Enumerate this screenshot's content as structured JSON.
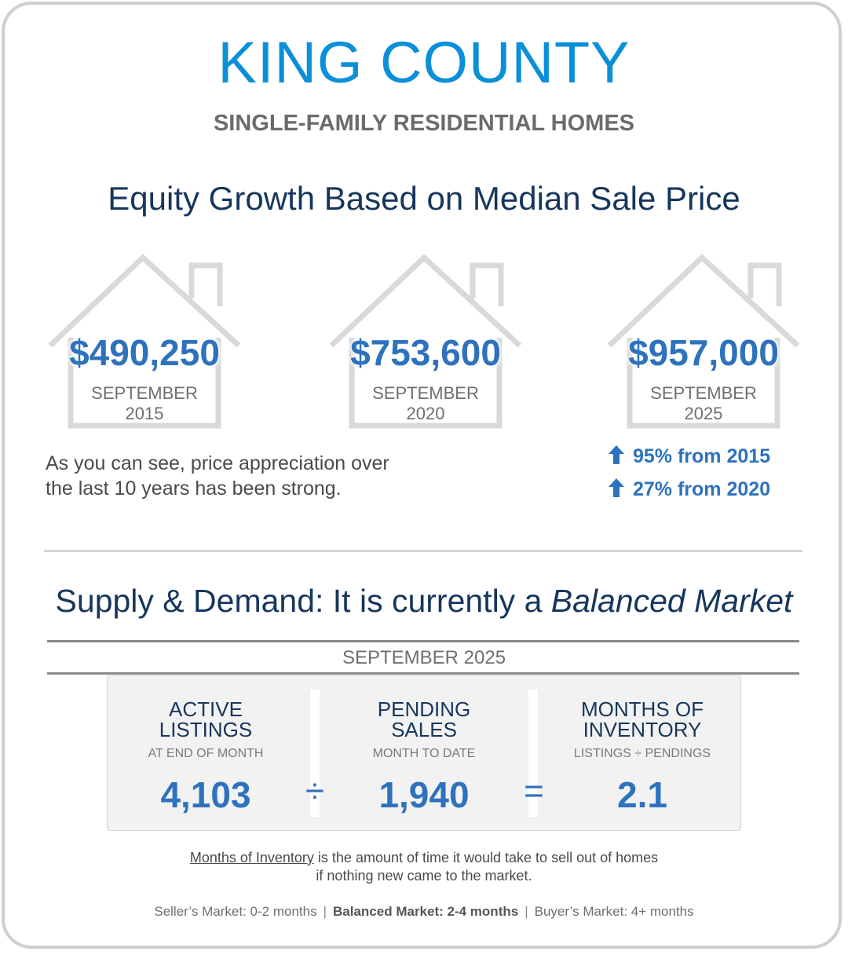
{
  "header": {
    "title": "KING COUNTY",
    "subtitle": "SINGLE-FAMILY RESIDENTIAL HOMES"
  },
  "equity": {
    "heading": "Equity Growth Based on Median Sale Price",
    "houses": [
      {
        "price": "$490,250",
        "month": "SEPTEMBER",
        "year": "2015"
      },
      {
        "price": "$753,600",
        "month": "SEPTEMBER",
        "year": "2020"
      },
      {
        "price": "$957,000",
        "month": "SEPTEMBER",
        "year": "2025"
      }
    ],
    "appreciation_line1": "As you can see, price appreciation over",
    "appreciation_line2": "the last 10 years has been strong.",
    "growth": [
      {
        "text": "95% from 2015",
        "icon": "up-arrow-icon"
      },
      {
        "text": "27% from 2020",
        "icon": "up-arrow-icon"
      }
    ]
  },
  "supply": {
    "heading_prefix": "Supply & Demand: It is currently a ",
    "heading_market": "Balanced Market",
    "period": "SEPTEMBER 2025",
    "columns": [
      {
        "label_line1": "ACTIVE",
        "label_line2": "LISTINGS",
        "sub": "AT END OF MONTH",
        "value": "4,103"
      },
      {
        "label_line1": "PENDING",
        "label_line2": "SALES",
        "sub": "MONTH TO DATE",
        "value": "1,940"
      },
      {
        "label_line1": "MONTHS OF",
        "label_line2": "INVENTORY",
        "sub": "LISTINGS ÷ PENDINGS",
        "value": "2.1"
      }
    ],
    "divide_symbol": "÷",
    "equals_symbol": "="
  },
  "definition": {
    "term": "Months of Inventory",
    "rest_line1": " is the amount of time it would take to sell out of homes",
    "line2": "if nothing new came to the market."
  },
  "market_scale": {
    "sellers": "Seller’s Market: 0-2 months",
    "balanced": "Balanced Market: 2-4 months",
    "buyers": "Buyer’s Market: 4+ months",
    "separator": "|"
  },
  "colors": {
    "title_blue": "#0b8fd9",
    "value_blue": "#2e72bd",
    "navy": "#16365c",
    "frame_gray": "#cfcfcf"
  }
}
